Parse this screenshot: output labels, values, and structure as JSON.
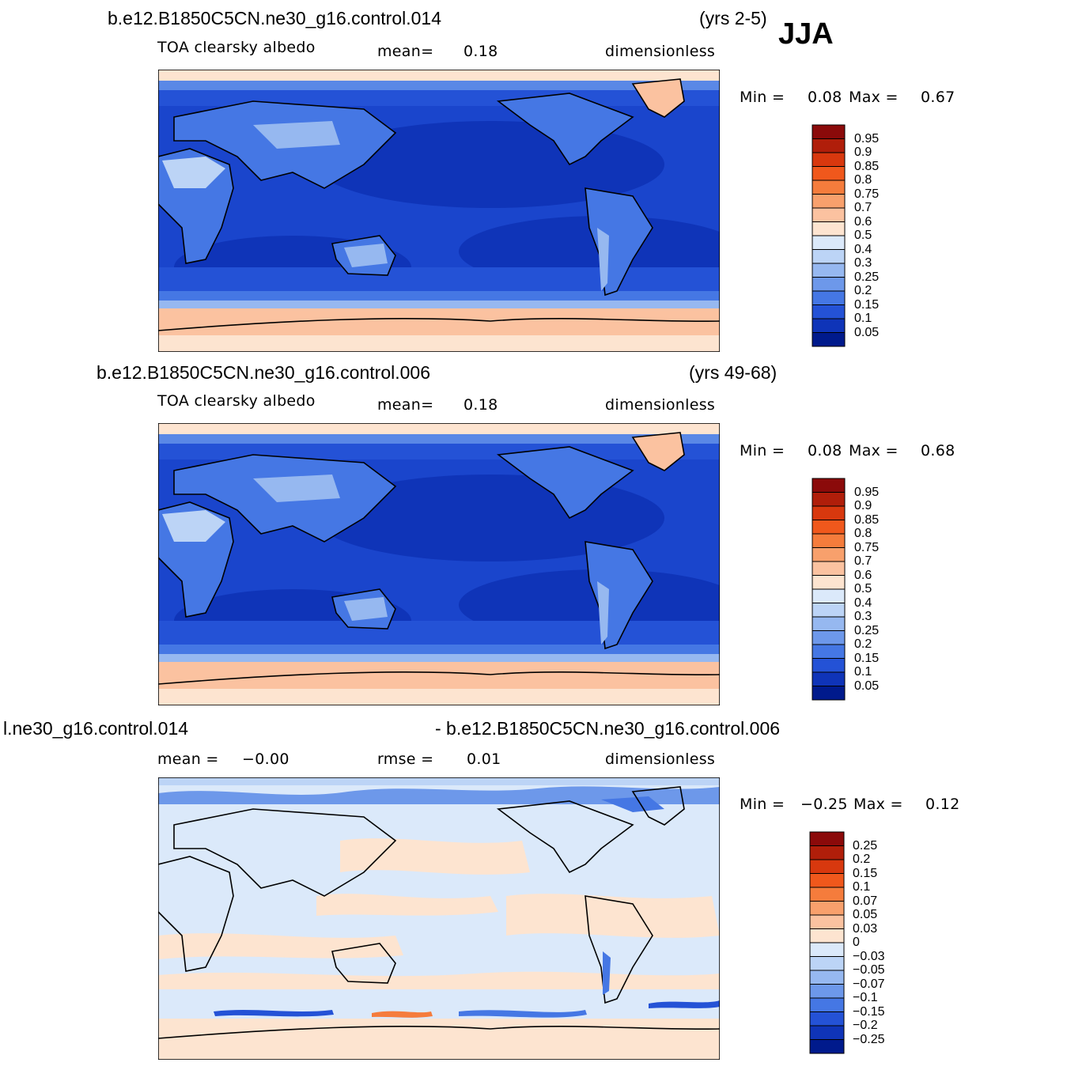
{
  "season": "JJA",
  "panels": [
    {
      "case_title": "b.e12.B1850C5CN.ne30_g16.control.014",
      "years": "(yrs 2-5)",
      "variable": "TOA clearsky albedo",
      "stat1": "mean=",
      "stat1_value": "0.18",
      "units": "dimensionless",
      "min_label": "Min =",
      "min_value": "0.08",
      "max_label": "Max =",
      "max_value": "0.67"
    },
    {
      "case_title": "b.e12.B1850C5CN.ne30_g16.control.006",
      "years": "(yrs 49-68)",
      "variable": "TOA clearsky albedo",
      "stat1": "mean=",
      "stat1_value": "0.18",
      "units": "dimensionless",
      "min_label": "Min =",
      "min_value": "0.08",
      "max_label": "Max =",
      "max_value": "0.68"
    },
    {
      "case_title_left": "l.ne30_g16.control.014",
      "case_title_right": "- b.e12.B1850C5CN.ne30_g16.control.006",
      "stat1": "mean =",
      "stat1_value": "−0.00",
      "stat2": "rmse =",
      "stat2_value": "0.01",
      "units": "dimensionless",
      "min_label": "Min =",
      "min_value": "−0.25",
      "max_label": "Max =",
      "max_value": "0.12"
    }
  ],
  "colorbar_abs": {
    "labels": [
      "0.95",
      "0.9",
      "0.85",
      "0.8",
      "0.75",
      "0.7",
      "0.6",
      "0.5",
      "0.4",
      "0.3",
      "0.25",
      "0.2",
      "0.15",
      "0.1",
      "0.05"
    ],
    "colors": [
      "#8b0a0a",
      "#b01e0a",
      "#d8380e",
      "#f0581c",
      "#f57c3c",
      "#f8a06c",
      "#fbc2a0",
      "#fde4d0",
      "#dbe9fa",
      "#bcd4f6",
      "#96b8f0",
      "#6d98ea",
      "#4577e4",
      "#2452d6",
      "#0f34b8",
      "#001a8c"
    ]
  },
  "colorbar_diff": {
    "labels": [
      "0.25",
      "0.2",
      "0.15",
      "0.1",
      "0.07",
      "0.05",
      "0.03",
      "0",
      "−0.03",
      "−0.05",
      "−0.07",
      "−0.1",
      "−0.15",
      "−0.2",
      "−0.25"
    ],
    "colors": [
      "#8b0a0a",
      "#b01e0a",
      "#d8380e",
      "#f0581c",
      "#f57c3c",
      "#f8a06c",
      "#fbc2a0",
      "#fde4d0",
      "#dbe9fa",
      "#bcd4f6",
      "#96b8f0",
      "#6d98ea",
      "#4577e4",
      "#2452d6",
      "#0f34b8",
      "#001a8c"
    ]
  },
  "map_colors": {
    "deep_ocean": "#0c2fa8",
    "ocean": "#1a45cc",
    "ocean_mid": "#2a5ad8",
    "land_low": "#3a6be0",
    "land_mid": "#5a88e6",
    "desert": "#bcd4f6",
    "ice": "#fbc2a0",
    "ice_edge": "#fde4d0",
    "diff_neg_small": "#dbe9fa",
    "diff_pos_small": "#fde4d0",
    "diff_neg": "#6d98ea",
    "diff_pos": "#f57c3c"
  }
}
